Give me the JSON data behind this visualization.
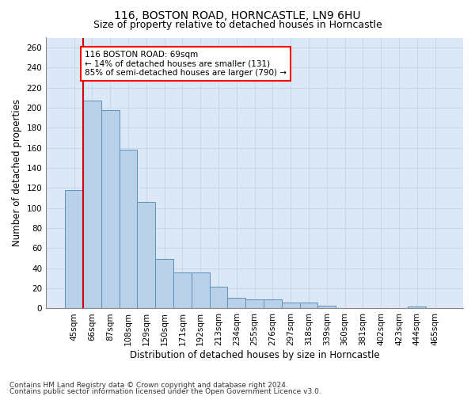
{
  "title1": "116, BOSTON ROAD, HORNCASTLE, LN9 6HU",
  "title2": "Size of property relative to detached houses in Horncastle",
  "xlabel": "Distribution of detached houses by size in Horncastle",
  "ylabel": "Number of detached properties",
  "footer1": "Contains HM Land Registry data © Crown copyright and database right 2024.",
  "footer2": "Contains public sector information licensed under the Open Government Licence v3.0.",
  "categories": [
    "45sqm",
    "66sqm",
    "87sqm",
    "108sqm",
    "129sqm",
    "150sqm",
    "171sqm",
    "192sqm",
    "213sqm",
    "234sqm",
    "255sqm",
    "276sqm",
    "297sqm",
    "318sqm",
    "339sqm",
    "360sqm",
    "381sqm",
    "402sqm",
    "423sqm",
    "444sqm",
    "465sqm"
  ],
  "values": [
    118,
    207,
    198,
    158,
    106,
    49,
    36,
    36,
    22,
    11,
    9,
    9,
    6,
    6,
    3,
    0,
    0,
    0,
    0,
    2,
    0
  ],
  "bar_color": "#b8d0e8",
  "bar_edge_color": "#6090b8",
  "red_line_x": 1,
  "annotation_text": "116 BOSTON ROAD: 69sqm\n← 14% of detached houses are smaller (131)\n85% of semi-detached houses are larger (790) →",
  "annotation_box_color": "white",
  "annotation_box_edge_color": "red",
  "red_line_color": "#cc0000",
  "ylim": [
    0,
    270
  ],
  "yticks": [
    0,
    20,
    40,
    60,
    80,
    100,
    120,
    140,
    160,
    180,
    200,
    220,
    240,
    260
  ],
  "grid_color": "#c8d8e8",
  "background_color": "#dce8f5",
  "title1_fontsize": 10,
  "title2_fontsize": 9,
  "xlabel_fontsize": 8.5,
  "ylabel_fontsize": 8.5,
  "footer_fontsize": 6.5,
  "tick_fontsize": 7.5,
  "annot_fontsize": 7.5
}
